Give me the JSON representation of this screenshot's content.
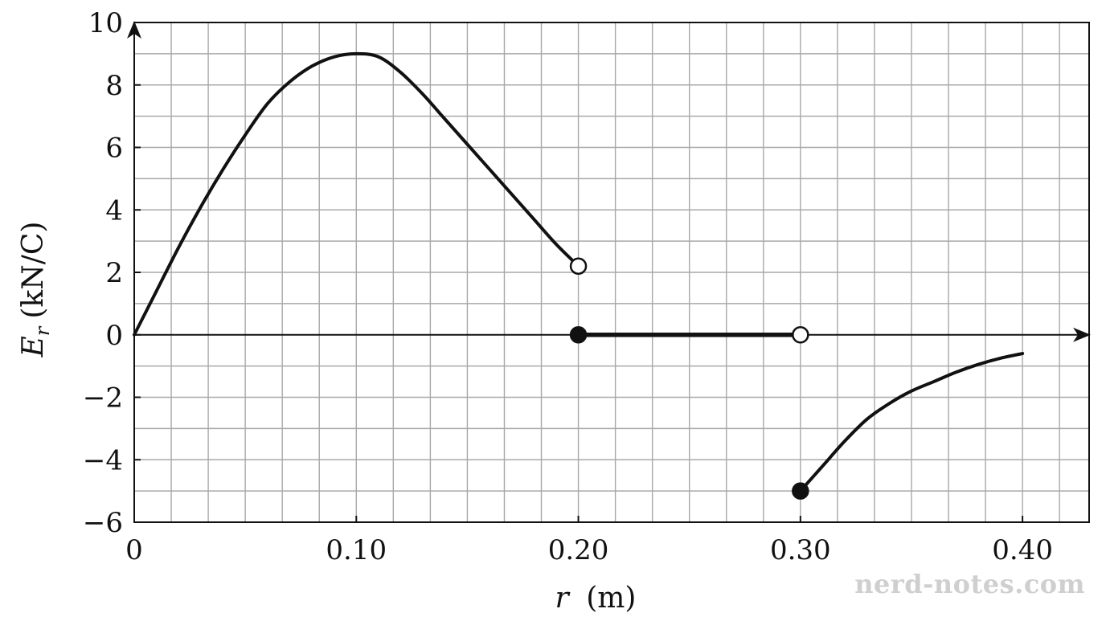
{
  "chart_data": {
    "type": "line",
    "xlabel_var": "r",
    "xlabel_unit": "(m)",
    "ylabel_var": "E",
    "ylabel_sub": "r",
    "ylabel_unit": "(kN/C)",
    "xlim": [
      0,
      0.43
    ],
    "ylim": [
      -6,
      10
    ],
    "x_ticks": [
      0,
      0.1,
      0.2,
      0.3,
      0.4
    ],
    "x_tick_labels": [
      "0",
      "0.10",
      "0.20",
      "0.30",
      "0.40"
    ],
    "y_ticks": [
      -6,
      -4,
      -2,
      0,
      2,
      4,
      6,
      8,
      10
    ],
    "y_tick_labels": [
      "−6",
      "−4",
      "−2",
      "0",
      "2",
      "4",
      "6",
      "8",
      "10"
    ],
    "grid": true,
    "series": [
      {
        "segment": 1,
        "x": [
          0,
          0.01,
          0.02,
          0.03,
          0.04,
          0.05,
          0.06,
          0.07,
          0.08,
          0.09,
          0.1,
          0.11,
          0.12,
          0.13,
          0.14,
          0.15,
          0.16,
          0.17,
          0.18,
          0.19,
          0.2
        ],
        "y": [
          0,
          1.4,
          2.8,
          4.1,
          5.3,
          6.4,
          7.4,
          8.1,
          8.6,
          8.9,
          9.0,
          8.9,
          8.4,
          7.7,
          6.9,
          6.1,
          5.3,
          4.5,
          3.7,
          2.9,
          2.2
        ],
        "endpoint": {
          "x": 0.2,
          "y": 2.2,
          "marker": "open"
        }
      },
      {
        "segment": 2,
        "x": [
          0.2,
          0.3
        ],
        "y": [
          0,
          0
        ],
        "start": {
          "x": 0.2,
          "y": 0,
          "marker": "filled"
        },
        "endpoint": {
          "x": 0.3,
          "y": 0,
          "marker": "open"
        }
      },
      {
        "segment": 3,
        "x": [
          0.3,
          0.31,
          0.32,
          0.33,
          0.34,
          0.35,
          0.36,
          0.37,
          0.38,
          0.39,
          0.4
        ],
        "y": [
          -5.0,
          -4.2,
          -3.4,
          -2.7,
          -2.2,
          -1.8,
          -1.5,
          -1.2,
          -0.95,
          -0.75,
          -0.6
        ],
        "start": {
          "x": 0.3,
          "y": -5.0,
          "marker": "filled"
        }
      }
    ]
  },
  "watermark": "nerd-notes.com"
}
